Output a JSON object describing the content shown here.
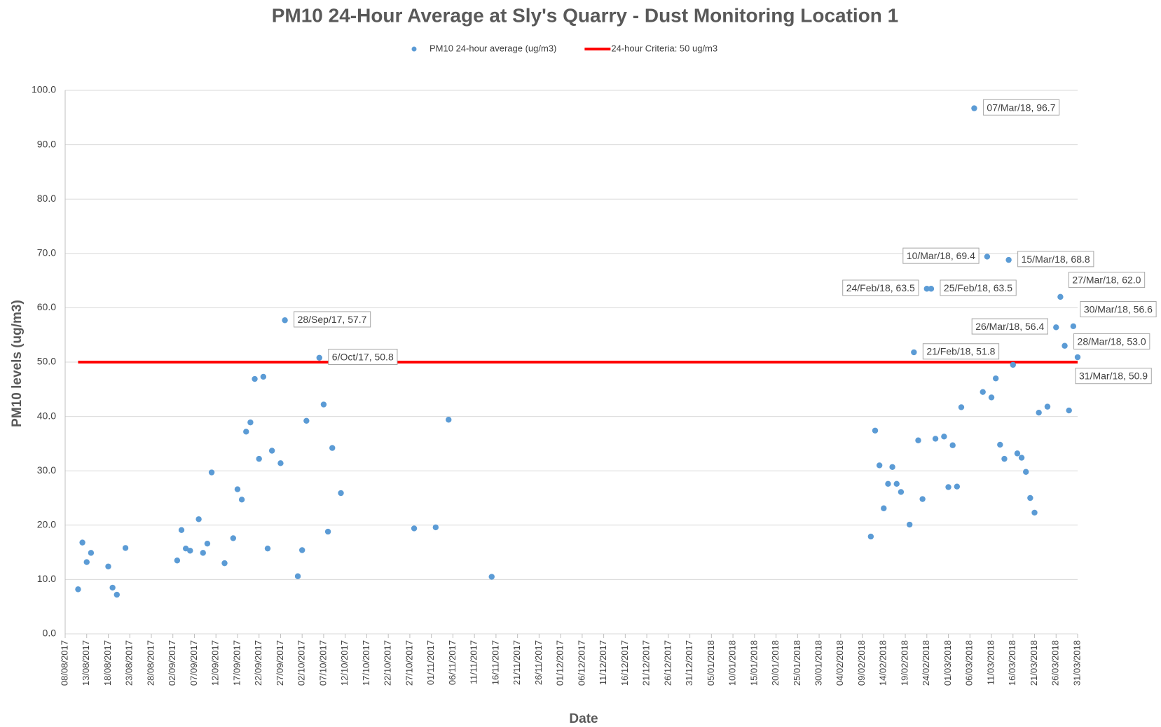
{
  "chart_data": {
    "type": "scatter",
    "title": "PM10 24-Hour Average at Sly's Quarry - Dust Monitoring Location 1",
    "x_label": "Date",
    "y_label": "PM10 levels (ug/m3)",
    "xlim": [
      "08/08/2017",
      "31/03/2018"
    ],
    "xticks": [
      "08/08/2017",
      "13/08/2017",
      "18/08/2017",
      "23/08/2017",
      "28/08/2017",
      "02/09/2017",
      "07/09/2017",
      "12/09/2017",
      "17/09/2017",
      "22/09/2017",
      "27/09/2017",
      "02/10/2017",
      "07/10/2017",
      "12/10/2017",
      "17/10/2017",
      "22/10/2017",
      "27/10/2017",
      "01/11/2017",
      "06/11/2017",
      "11/11/2017",
      "16/11/2017",
      "21/11/2017",
      "26/11/2017",
      "01/12/2017",
      "06/12/2017",
      "11/12/2017",
      "16/12/2017",
      "21/12/2017",
      "26/12/2017",
      "31/12/2017",
      "05/01/2018",
      "10/01/2018",
      "15/01/2018",
      "20/01/2018",
      "25/01/2018",
      "30/01/2018",
      "04/02/2018",
      "09/02/2018",
      "14/02/2018",
      "19/02/2018",
      "24/02/2018",
      "01/03/2018",
      "06/03/2018",
      "11/03/2018",
      "16/03/2018",
      "21/03/2018",
      "26/03/2018",
      "31/03/2018"
    ],
    "ylim": [
      0,
      100
    ],
    "yticks": [
      {
        "value": 0,
        "label": "0.0"
      },
      {
        "value": 10,
        "label": "10.0"
      },
      {
        "value": 20,
        "label": "20.0"
      },
      {
        "value": 30,
        "label": "30.0"
      },
      {
        "value": 40,
        "label": "40.0"
      },
      {
        "value": 50,
        "label": "50.0"
      },
      {
        "value": 60,
        "label": "60.0"
      },
      {
        "value": 70,
        "label": "70.0"
      },
      {
        "value": 80,
        "label": "80.0"
      },
      {
        "value": 90,
        "label": "90.0"
      },
      {
        "value": 100,
        "label": "100.0"
      }
    ],
    "grid": true,
    "legend": "top",
    "series": [
      {
        "name": "PM10 24-hour average (ug/m3)",
        "kind": "markers",
        "color": "#5b9bd5",
        "x": [
          "11/08/2017",
          "12/08/2017",
          "13/08/2017",
          "14/08/2017",
          "18/08/2017",
          "19/08/2017",
          "20/08/2017",
          "22/08/2017",
          "03/09/2017",
          "04/09/2017",
          "05/09/2017",
          "06/09/2017",
          "08/09/2017",
          "09/09/2017",
          "10/09/2017",
          "11/09/2017",
          "14/09/2017",
          "16/09/2017",
          "17/09/2017",
          "18/09/2017",
          "19/09/2017",
          "20/09/2017",
          "21/09/2017",
          "22/09/2017",
          "23/09/2017",
          "24/09/2017",
          "25/09/2017",
          "27/09/2017",
          "28/09/2017",
          "01/10/2017",
          "02/10/2017",
          "03/10/2017",
          "06/10/2017",
          "07/10/2017",
          "08/10/2017",
          "09/10/2017",
          "11/10/2017",
          "28/10/2017",
          "02/11/2017",
          "05/11/2017",
          "15/11/2017",
          "11/02/2018",
          "12/02/2018",
          "13/02/2018",
          "14/02/2018",
          "15/02/2018",
          "16/02/2018",
          "17/02/2018",
          "18/02/2018",
          "20/02/2018",
          "21/02/2018",
          "22/02/2018",
          "23/02/2018",
          "24/02/2018",
          "25/02/2018",
          "26/02/2018",
          "28/02/2018",
          "01/03/2018",
          "02/03/2018",
          "03/03/2018",
          "04/03/2018",
          "07/03/2018",
          "09/03/2018",
          "10/03/2018",
          "11/03/2018",
          "12/03/2018",
          "13/03/2018",
          "14/03/2018",
          "15/03/2018",
          "16/03/2018",
          "17/03/2018",
          "18/03/2018",
          "19/03/2018",
          "20/03/2018",
          "21/03/2018",
          "22/03/2018",
          "24/03/2018",
          "26/03/2018",
          "27/03/2018",
          "28/03/2018",
          "29/03/2018",
          "30/03/2018",
          "31/03/2018"
        ],
        "values": [
          8.2,
          16.8,
          13.2,
          14.9,
          12.4,
          8.5,
          7.2,
          15.8,
          13.5,
          19.1,
          15.7,
          15.3,
          21.1,
          14.9,
          16.6,
          29.7,
          13.0,
          17.6,
          26.6,
          24.7,
          37.2,
          38.9,
          46.9,
          32.2,
          47.3,
          15.7,
          33.7,
          31.4,
          57.7,
          10.6,
          15.4,
          39.2,
          50.8,
          42.2,
          18.8,
          34.2,
          25.9,
          19.4,
          19.6,
          39.4,
          10.5,
          17.9,
          37.4,
          31.0,
          23.1,
          27.6,
          30.7,
          27.6,
          26.1,
          20.1,
          51.8,
          35.6,
          24.8,
          63.5,
          63.5,
          35.9,
          36.3,
          27.0,
          34.7,
          27.1,
          41.7,
          96.7,
          44.5,
          69.4,
          43.5,
          47.0,
          34.8,
          32.2,
          68.8,
          49.5,
          33.2,
          32.4,
          29.8,
          25.0,
          22.3,
          40.7,
          41.8,
          56.4,
          62.0,
          53.0,
          41.1,
          56.6,
          50.9
        ],
        "value_labels": [
          null,
          null,
          null,
          null,
          null,
          null,
          null,
          null,
          null,
          null,
          null,
          null,
          null,
          null,
          null,
          null,
          null,
          null,
          null,
          null,
          null,
          null,
          null,
          null,
          null,
          null,
          null,
          null,
          "28/Sep/17, 57.7",
          null,
          null,
          null,
          "6/Oct/17, 50.8",
          null,
          null,
          null,
          null,
          null,
          null,
          null,
          null,
          null,
          null,
          null,
          null,
          null,
          null,
          null,
          null,
          null,
          "21/Feb/18, 51.8",
          null,
          null,
          "24/Feb/18, 63.5",
          "25/Feb/18, 63.5",
          null,
          null,
          null,
          null,
          null,
          null,
          "07/Mar/18, 96.7",
          null,
          "10/Mar/18, 69.4",
          null,
          null,
          null,
          null,
          "15/Mar/18, 68.8",
          null,
          null,
          null,
          null,
          null,
          null,
          null,
          null,
          "26/Mar/18, 56.4",
          "27/Mar/18, 62.0",
          "28/Mar/18, 53.0",
          null,
          "30/Mar/18, 56.6",
          "31/Mar/18, 50.9"
        ]
      },
      {
        "name": "24-hour Criteria: 50 ug/m3",
        "kind": "line",
        "color": "#ff0000",
        "x": [
          "11/08/2017",
          "31/03/2018"
        ],
        "values": [
          50,
          50
        ]
      }
    ]
  }
}
